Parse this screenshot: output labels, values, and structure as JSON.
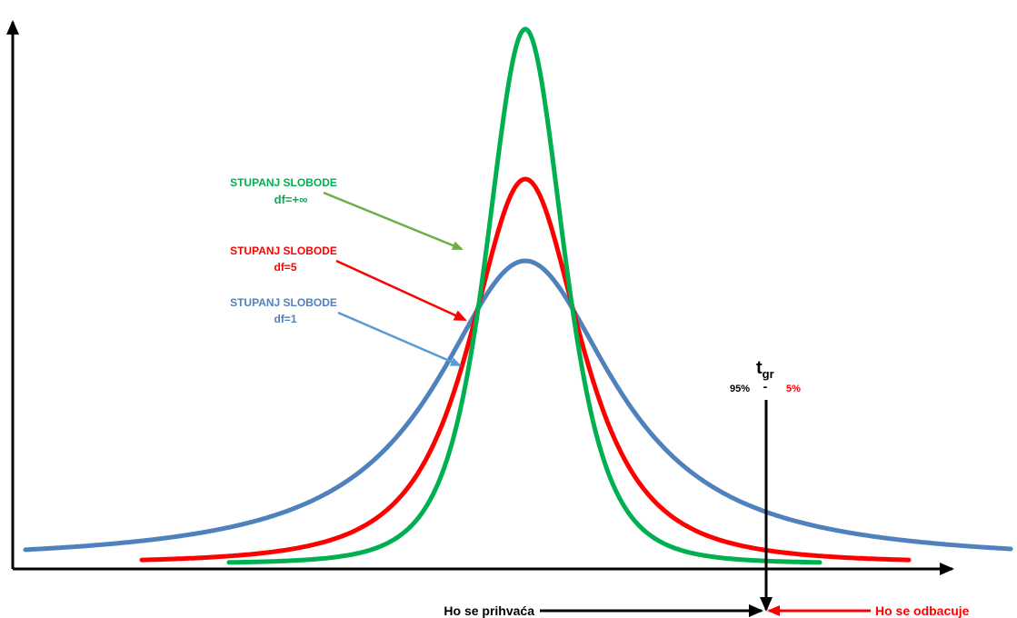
{
  "colors": {
    "axis": "#000000",
    "green": "#00B050",
    "red": "#FF0000",
    "blue": "#4F81BD",
    "green_arrow": "#70AD47",
    "blue_arrow": "#5B9BD5"
  },
  "labels": {
    "green_title": "STUPANJ SLOBODE",
    "green_df": "df=+∞",
    "red_title": "STUPANJ SLOBODE",
    "red_df": "df=5",
    "blue_title": "STUPANJ SLOBODE",
    "blue_df": "df=1",
    "t_main": "t",
    "t_sub": "gr",
    "pct_left": "95%",
    "dash": "-",
    "pct_right": "5%",
    "accept": "Ho se prihvaća",
    "reject": "Ho se odbacuje"
  },
  "curves": [
    {
      "name": "df=+∞",
      "color_key": "green"
    },
    {
      "name": "df=5",
      "color_key": "red"
    },
    {
      "name": "df=1",
      "color_key": "blue"
    }
  ]
}
